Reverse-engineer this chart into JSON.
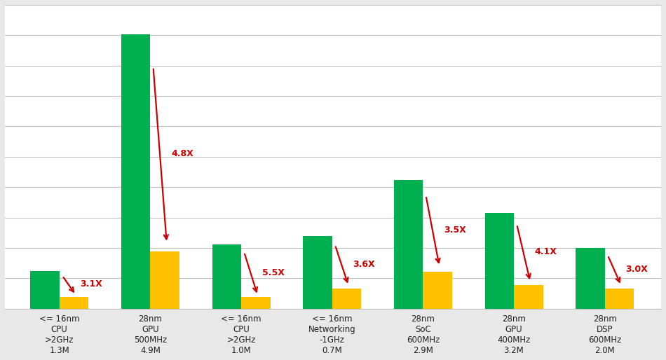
{
  "categories": [
    "<= 16nm\nCPU\n>2GHz\n1.3M",
    "28nm\nGPU\n500MHz\n4.9M",
    "<= 16nm\nCPU\n>2GHz\n1.0M",
    "<= 16nm\nNetworking\n-1GHz\n0.7M",
    "28nm\nSoC\n600MHz\n2.9M",
    "28nm\nGPU\n400MHz\n3.2M",
    "28nm\nDSP\n600MHz\n2.0M"
  ],
  "green_values": [
    3.2,
    23.5,
    5.5,
    6.2,
    11.0,
    8.2,
    5.2
  ],
  "orange_values": [
    1.03,
    4.9,
    1.0,
    1.72,
    3.15,
    2.0,
    1.73
  ],
  "multipliers": [
    "3.1X",
    "4.8X",
    "5.5X",
    "3.6X",
    "3.5X",
    "4.1X",
    "3.0X"
  ],
  "green_color": "#00B050",
  "orange_color": "#FFC000",
  "arrow_color": "#CC0000",
  "multiplier_color": "#CC0000",
  "background_color": "#FFFFFF",
  "grid_color": "#C0C0C0",
  "ylim": [
    0,
    26
  ],
  "bar_width": 0.32,
  "figure_bg": "#FFFFFF",
  "outer_bg": "#E8E8E8"
}
